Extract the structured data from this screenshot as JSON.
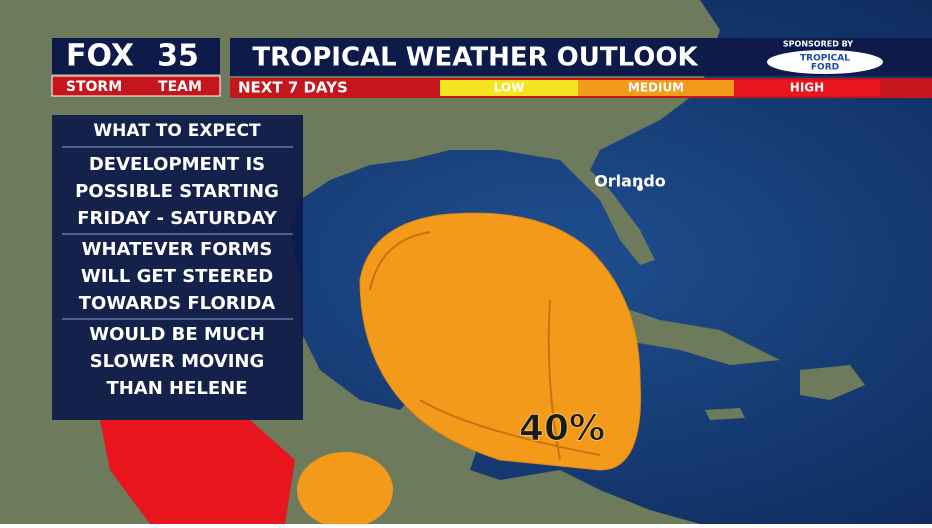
{
  "logo": {
    "fox": "FOX",
    "channel": "35",
    "team_left": "STORM",
    "team_right": "TEAM"
  },
  "header": {
    "title": "TROPICAL WEATHER OUTLOOK",
    "subtitle": "NEXT 7 DAYS",
    "sponsor_label": "SPONSORED BY",
    "sponsor_top": "TROPICAL",
    "sponsor_bottom": "FORD"
  },
  "legend": {
    "levels": [
      "LOW",
      "MEDIUM",
      "HIGH"
    ]
  },
  "panel": {
    "title": "WHAT TO EXPECT",
    "items": [
      {
        "lines": [
          "DEVELOPMENT IS",
          "POSSIBLE STARTING",
          "FRIDAY - SATURDAY"
        ]
      },
      {
        "lines": [
          "WHATEVER FORMS",
          "WILL GET STEERED",
          "TOWARDS FLORIDA"
        ]
      },
      {
        "lines": [
          "WOULD BE MUCH",
          "SLOWER MOVING",
          "THAN HELENE"
        ]
      }
    ]
  },
  "map": {
    "city": "Orlando",
    "chance": "40%"
  }
}
